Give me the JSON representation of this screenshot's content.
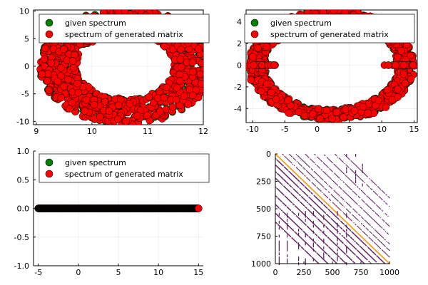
{
  "chart_data": [
    {
      "type": "scatter",
      "title": "",
      "xlabel": "",
      "ylabel": "",
      "xlim": [
        8.95,
        12.0
      ],
      "ylim": [
        -10.6,
        10.2
      ],
      "xticks": [
        9,
        10,
        11,
        12
      ],
      "yticks": [
        -10,
        -5,
        0,
        5,
        10
      ],
      "xtick_labels": [
        "9",
        "10",
        "11",
        "12"
      ],
      "ytick_labels": [
        "-10",
        "-5",
        "0",
        "5",
        "10"
      ],
      "grid": true,
      "legend": "top-left",
      "shape": "annulus-section",
      "series": [
        {
          "name": "given spectrum",
          "color": "#008000",
          "marker": "circle",
          "point_count": 1000
        },
        {
          "name": "spectrum of generated matrix",
          "color": "#ff0000",
          "marker": "circle",
          "point_count": 1000
        }
      ]
    },
    {
      "type": "scatter",
      "title": "",
      "xlabel": "",
      "ylabel": "",
      "xlim": [
        -11,
        15.5
      ],
      "ylim": [
        -5.3,
        5.1
      ],
      "xticks": [
        -10,
        -5,
        0,
        5,
        10,
        15
      ],
      "yticks": [
        -4,
        -2,
        0,
        2,
        4
      ],
      "xtick_labels": [
        "-10",
        "-5",
        "0",
        "5",
        "10",
        "15"
      ],
      "ytick_labels": [
        "-4",
        "-2",
        "0",
        "2",
        "4"
      ],
      "grid": true,
      "legend": "top-right",
      "shape": "ring",
      "series": [
        {
          "name": "given spectrum",
          "color": "#008000",
          "marker": "circle",
          "point_count": 1000
        },
        {
          "name": "spectrum of generated matrix",
          "color": "#ff0000",
          "marker": "circle",
          "point_count": 1000
        }
      ]
    },
    {
      "type": "scatter",
      "title": "",
      "xlabel": "",
      "ylabel": "",
      "xlim": [
        -5.6,
        15.6
      ],
      "ylim": [
        -1.0,
        1.0
      ],
      "xticks": [
        -5,
        0,
        5,
        10,
        15
      ],
      "yticks": [
        -1.0,
        -0.5,
        0.0,
        0.5,
        1.0
      ],
      "xtick_labels": [
        "-5",
        "0",
        "5",
        "10",
        "15"
      ],
      "ytick_labels": [
        "-1.0",
        "-0.5",
        "0.0",
        "0.5",
        "1.0"
      ],
      "grid": true,
      "legend": "top-right",
      "shape": "real-line",
      "series": [
        {
          "name": "given spectrum",
          "color": "#008000",
          "marker": "circle",
          "x_range": [
            -5,
            15
          ],
          "y": 0
        },
        {
          "name": "spectrum of generated matrix",
          "color": "#ff0000",
          "marker": "circle",
          "x_range": [
            -5,
            15
          ],
          "y": 0
        }
      ]
    },
    {
      "type": "heatmap",
      "title": "",
      "xlabel": "",
      "ylabel": "",
      "xlim": [
        0,
        1000
      ],
      "ylim": [
        0,
        1000
      ],
      "y_reversed": true,
      "xticks": [
        0,
        250,
        500,
        750,
        1000
      ],
      "yticks": [
        0,
        250,
        500,
        750,
        1000
      ],
      "xtick_labels": [
        "0",
        "250",
        "500",
        "750",
        "1000"
      ],
      "ytick_labels": [
        "0",
        "250",
        "500",
        "750",
        "1000"
      ],
      "grid": false,
      "legend": "none",
      "shape": "sparsity-pattern",
      "colors": {
        "main": "#5b1a5e",
        "diagonal": "#f0a020"
      }
    }
  ]
}
